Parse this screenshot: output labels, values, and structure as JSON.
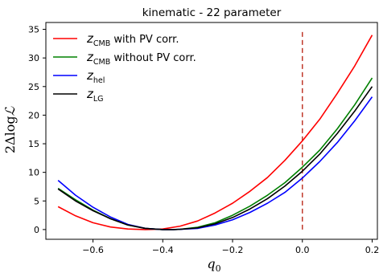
{
  "chart_data": {
    "type": "line",
    "title": "kinematic - 22 parameter",
    "xlabel": {
      "base": "q",
      "sub": "0"
    },
    "ylabel": {
      "prefix": "2Δlog",
      "symbol": "ℒ"
    },
    "xlim": [
      -0.735,
      0.215
    ],
    "ylim": [
      -1.7,
      36.2
    ],
    "xticks": [
      -0.6,
      -0.4,
      -0.2,
      0.0,
      0.2
    ],
    "xtick_labels": [
      "−0.6",
      "−0.4",
      "−0.2",
      "0.0",
      "0.2"
    ],
    "yticks": [
      0,
      5,
      10,
      15,
      20,
      25,
      30,
      35
    ],
    "ytick_labels": [
      "0",
      "5",
      "10",
      "15",
      "20",
      "25",
      "30",
      "35"
    ],
    "grid": false,
    "legend_position": "top-left",
    "vline": {
      "x": 0.0,
      "y_from": 0,
      "y_to": 34.8,
      "color": "#c0392b",
      "style": "dashed"
    },
    "series": [
      {
        "name": "z_CMB with PV corr.",
        "legend": {
          "base": "z",
          "sub": "CMB",
          "suffix": " with PV corr."
        },
        "color": "#ff0000",
        "x": [
          -0.7,
          -0.65,
          -0.6,
          -0.55,
          -0.5,
          -0.45,
          -0.42,
          -0.4,
          -0.35,
          -0.3,
          -0.25,
          -0.2,
          -0.15,
          -0.1,
          -0.05,
          0.0,
          0.05,
          0.1,
          0.15,
          0.2
        ],
        "y": [
          4.0,
          2.4,
          1.2,
          0.45,
          0.1,
          0.0,
          0.05,
          0.1,
          0.6,
          1.5,
          2.9,
          4.6,
          6.7,
          9.1,
          12.1,
          15.5,
          19.3,
          23.8,
          28.6,
          34.0
        ]
      },
      {
        "name": "z_CMB without PV corr.",
        "legend": {
          "base": "z",
          "sub": "CMB",
          "suffix": " without PV corr."
        },
        "color": "#008000",
        "x": [
          -0.7,
          -0.65,
          -0.6,
          -0.55,
          -0.5,
          -0.45,
          -0.4,
          -0.37,
          -0.35,
          -0.3,
          -0.25,
          -0.2,
          -0.15,
          -0.1,
          -0.05,
          0.0,
          0.05,
          0.1,
          0.15,
          0.2
        ],
        "y": [
          7.2,
          5.2,
          3.4,
          1.9,
          0.8,
          0.2,
          0.0,
          0.0,
          0.05,
          0.4,
          1.2,
          2.5,
          4.1,
          6.0,
          8.2,
          10.9,
          13.9,
          17.6,
          21.8,
          26.5
        ]
      },
      {
        "name": "z_hel",
        "legend": {
          "base": "z",
          "sub": "hel",
          "suffix": ""
        },
        "color": "#0000ff",
        "x": [
          -0.7,
          -0.65,
          -0.6,
          -0.55,
          -0.5,
          -0.45,
          -0.4,
          -0.37,
          -0.35,
          -0.3,
          -0.25,
          -0.2,
          -0.15,
          -0.1,
          -0.05,
          0.0,
          0.05,
          0.1,
          0.15,
          0.2
        ],
        "y": [
          8.6,
          6.0,
          3.9,
          2.2,
          0.9,
          0.2,
          0.0,
          0.0,
          0.05,
          0.2,
          0.8,
          1.7,
          3.0,
          4.6,
          6.5,
          9.0,
          11.9,
          15.2,
          19.0,
          23.2
        ]
      },
      {
        "name": "z_LG",
        "legend": {
          "base": "z",
          "sub": "LG",
          "suffix": ""
        },
        "color": "#000000",
        "x": [
          -0.7,
          -0.65,
          -0.6,
          -0.55,
          -0.5,
          -0.45,
          -0.4,
          -0.37,
          -0.35,
          -0.3,
          -0.25,
          -0.2,
          -0.15,
          -0.1,
          -0.05,
          0.0,
          0.05,
          0.1,
          0.15,
          0.2
        ],
        "y": [
          7.1,
          5.0,
          3.3,
          1.9,
          0.8,
          0.2,
          0.0,
          0.0,
          0.05,
          0.3,
          1.0,
          2.1,
          3.6,
          5.4,
          7.6,
          10.2,
          13.2,
          16.8,
          20.7,
          25.0
        ]
      }
    ]
  }
}
